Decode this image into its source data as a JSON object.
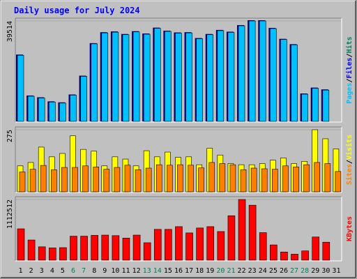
{
  "chart_data": {
    "type": "bar",
    "title": "Daily usage for July 2024",
    "categories": [
      "1",
      "2",
      "3",
      "4",
      "5",
      "6",
      "7",
      "8",
      "9",
      "10",
      "11",
      "12",
      "13",
      "14",
      "15",
      "16",
      "17",
      "18",
      "19",
      "20",
      "21",
      "22",
      "23",
      "24",
      "25",
      "26",
      "27",
      "28",
      "29",
      "30",
      "31"
    ],
    "weekend_days": [
      6,
      7,
      13,
      14,
      20,
      21,
      27,
      28
    ],
    "panels": [
      {
        "id": "hits-files-pages",
        "ymax_label": "39514",
        "ylim": [
          0,
          39514
        ],
        "side_label": [
          "Pages",
          "/",
          "Files",
          "/",
          "Hits"
        ],
        "series": [
          {
            "name": "Hits",
            "color": "#00805c",
            "values": [
              26000,
              9900,
              9200,
              7600,
              7200,
              10300,
              17700,
              30500,
              34800,
              35100,
              34100,
              35200,
              34300,
              36600,
              35400,
              34700,
              34800,
              32500,
              34100,
              35700,
              35000,
              37600,
              39514,
              39514,
              36500,
              32200,
              30100,
              10700,
              13000,
              0,
              0
            ]
          },
          {
            "name": "Files",
            "color": "#0000ff",
            "values": [
              25800,
              9800,
              8900,
              7500,
              7000,
              10200,
              17500,
              30300,
              34600,
              35000,
              34000,
              35100,
              34200,
              36400,
              35300,
              34600,
              34700,
              32400,
              34000,
              35600,
              34900,
              37500,
              39400,
              39400,
              36300,
              32000,
              30000,
              10500,
              12900,
              12300,
              0
            ],
            "fill": "#00bfff"
          }
        ],
        "bars_shown": [
          26000,
          9900,
          9200,
          7600,
          7200,
          10300,
          17700,
          30500,
          34800,
          35100,
          34100,
          35200,
          34300,
          36600,
          35400,
          34700,
          34800,
          32500,
          34100,
          35700,
          35000,
          37600,
          39514,
          39514,
          36500,
          32200,
          30100,
          10700,
          13000,
          12300,
          0
        ]
      },
      {
        "id": "visits-sites",
        "ymax_label": "275",
        "ylim": [
          0,
          275
        ],
        "side_label": [
          "Sites",
          "/",
          "Visits"
        ],
        "series": [
          {
            "name": "Visits",
            "color": "#ffff00",
            "values": [
              115,
              130,
              198,
              155,
              170,
              248,
              188,
              180,
              115,
              155,
              145,
              115,
              182,
              155,
              176,
              153,
              155,
              120,
              193,
              163,
              125,
              120,
              120,
              125,
              140,
              150,
              125,
              135,
              275,
              235,
              190
            ]
          },
          {
            "name": "Sites",
            "color": "#ff8000",
            "values": [
              88,
              100,
              117,
              98,
              108,
              108,
              115,
              110,
              100,
              108,
              118,
              98,
              105,
              120,
              118,
              120,
              118,
              106,
              130,
              125,
              120,
              98,
              105,
              102,
              100,
              115,
              110,
              120,
              130,
              125,
              90
            ]
          }
        ]
      },
      {
        "id": "kbytes",
        "ymax_label": "1112512",
        "ylim": [
          0,
          1112512
        ],
        "side_label": [
          "KBytes"
        ],
        "series": [
          {
            "name": "KBytes",
            "color": "#ff0000",
            "values": [
              575000,
              370000,
              245000,
              225000,
              230000,
              440000,
              440000,
              455000,
              460000,
              450000,
              405000,
              460000,
              320000,
              565000,
              565000,
              615000,
              500000,
              590000,
              615000,
              525000,
              815000,
              1112512,
              1008000,
              505000,
              280000,
              150000,
              110000,
              170000,
              425000,
              330000,
              0
            ]
          }
        ]
      }
    ]
  }
}
